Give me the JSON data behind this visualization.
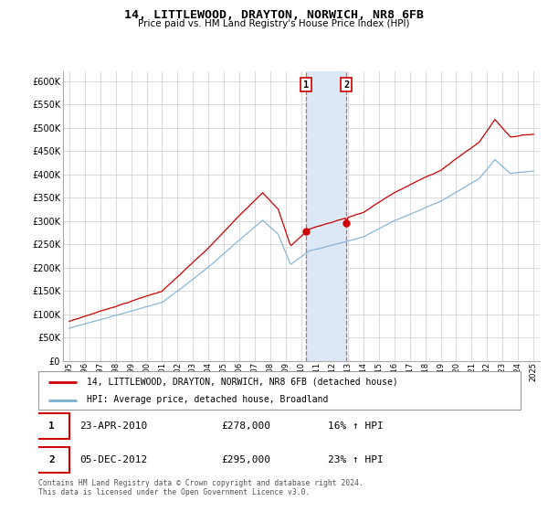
{
  "title": "14, LITTLEWOOD, DRAYTON, NORWICH, NR8 6FB",
  "subtitle": "Price paid vs. HM Land Registry's House Price Index (HPI)",
  "legend_line1": "14, LITTLEWOOD, DRAYTON, NORWICH, NR8 6FB (detached house)",
  "legend_line2": "HPI: Average price, detached house, Broadland",
  "sale1_date": "23-APR-2010",
  "sale1_price": "£278,000",
  "sale1_hpi": "16% ↑ HPI",
  "sale2_date": "05-DEC-2012",
  "sale2_price": "£295,000",
  "sale2_hpi": "23% ↑ HPI",
  "footer": "Contains HM Land Registry data © Crown copyright and database right 2024.\nThis data is licensed under the Open Government Licence v3.0.",
  "house_color": "#cc0000",
  "hpi_color": "#7bafd4",
  "highlight_color": "#dce8f5",
  "highlight_border_color": "#cc6666",
  "ylim": [
    0,
    620000
  ],
  "yticks": [
    0,
    50000,
    100000,
    150000,
    200000,
    250000,
    300000,
    350000,
    400000,
    450000,
    500000,
    550000,
    600000
  ],
  "sale1_year": 2010.3,
  "sale2_year": 2012.9,
  "sale1_value": 278000,
  "sale2_value": 295000,
  "xstart": 1995,
  "xend": 2025
}
